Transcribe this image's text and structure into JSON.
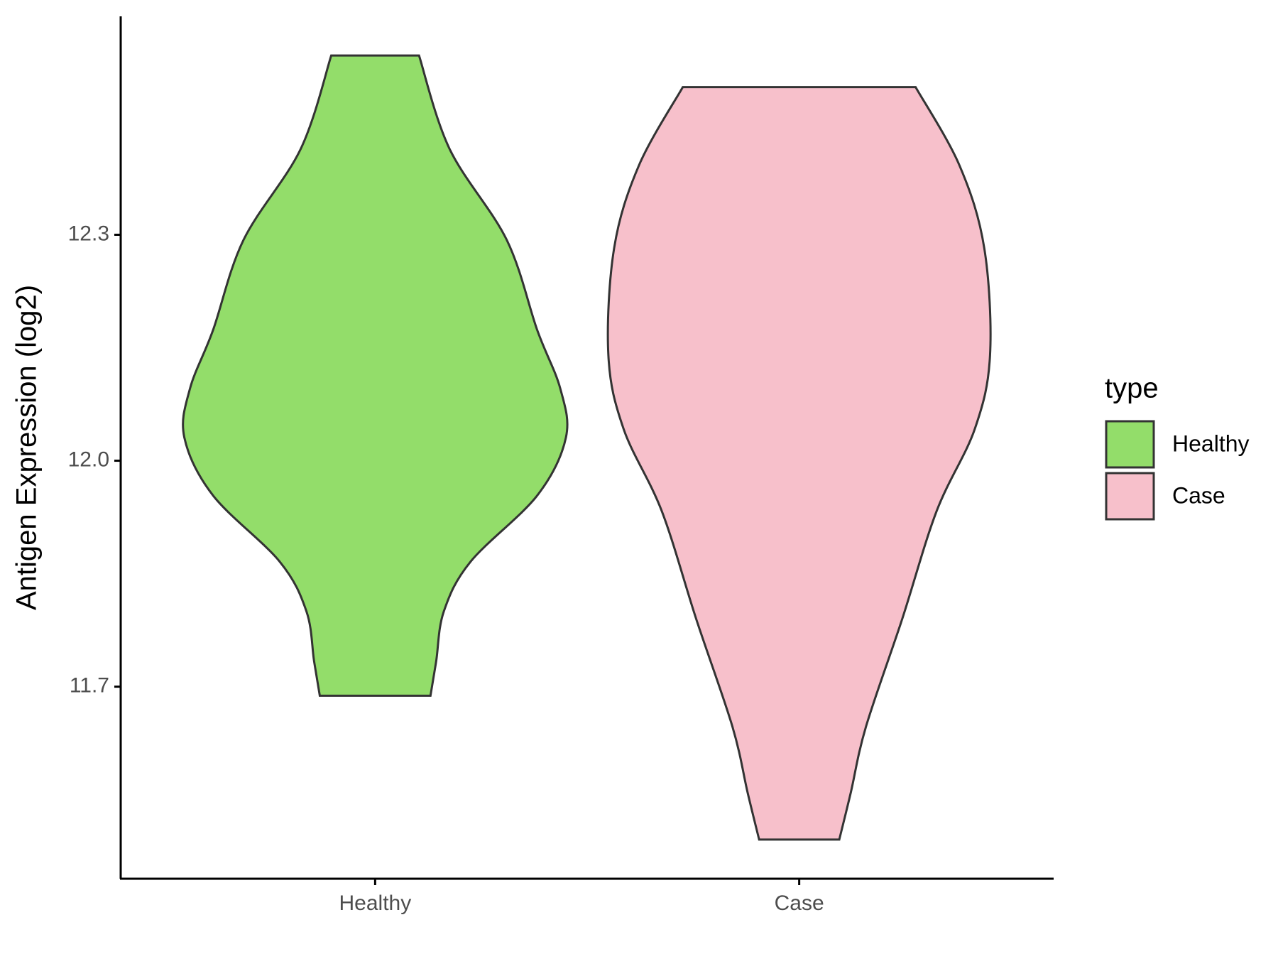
{
  "chart_data": {
    "type": "violin",
    "y_label": "Antigen Expression (log2)",
    "categories": [
      "Healthy",
      "Case"
    ],
    "ylim": [
      11.445,
      12.59
    ],
    "yticks": [
      {
        "value": 11.7,
        "label": "11.7"
      },
      {
        "value": 12.0,
        "label": "12.0"
      },
      {
        "value": 12.3,
        "label": "12.3"
      }
    ],
    "legend_title": "type",
    "legend_position": "right",
    "series": [
      {
        "name": "Healthy",
        "color": "#93dd6a",
        "density_y": [
          12.538,
          12.414,
          12.293,
          12.173,
          12.096,
          12.031,
          11.954,
          11.866,
          11.8,
          11.734,
          11.688
        ],
        "density_width": [
          0.23,
          0.39,
          0.69,
          0.85,
          0.97,
          1,
          0.85,
          0.5,
          0.36,
          0.32,
          0.29
        ]
      },
      {
        "name": "Case",
        "color": "#f7c0cb",
        "density_y": [
          12.496,
          12.392,
          12.282,
          12.14,
          12.042,
          11.933,
          11.79,
          11.647,
          11.559,
          11.497
        ],
        "density_width": [
          0.61,
          0.84,
          0.97,
          1,
          0.92,
          0.72,
          0.54,
          0.35,
          0.27,
          0.21
        ]
      }
    ]
  }
}
